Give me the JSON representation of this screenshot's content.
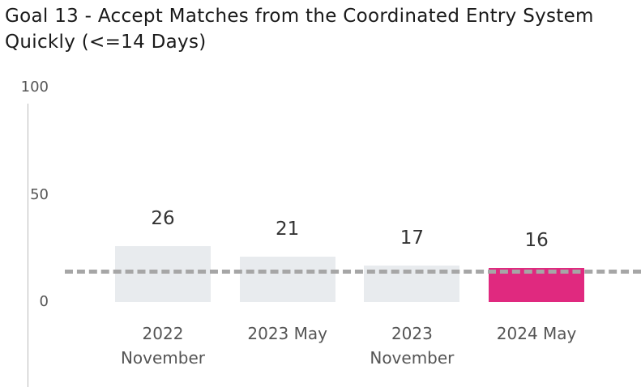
{
  "chart_data": {
    "type": "bar",
    "title": "Goal 13 - Accept Matches from the Coordinated Entry System Quickly (<=14 Days)",
    "categories": [
      "2022 November",
      "2023 May",
      "2023 November",
      "2024 May"
    ],
    "values": [
      26,
      21,
      17,
      16
    ],
    "colors": [
      "#e8ebee",
      "#e8ebee",
      "#e8ebee",
      "#e0297f"
    ],
    "target": 14,
    "target_color": "#a6a6a6",
    "ylim": [
      0,
      100
    ],
    "yticks": [
      0,
      50,
      100
    ],
    "grid": false
  }
}
